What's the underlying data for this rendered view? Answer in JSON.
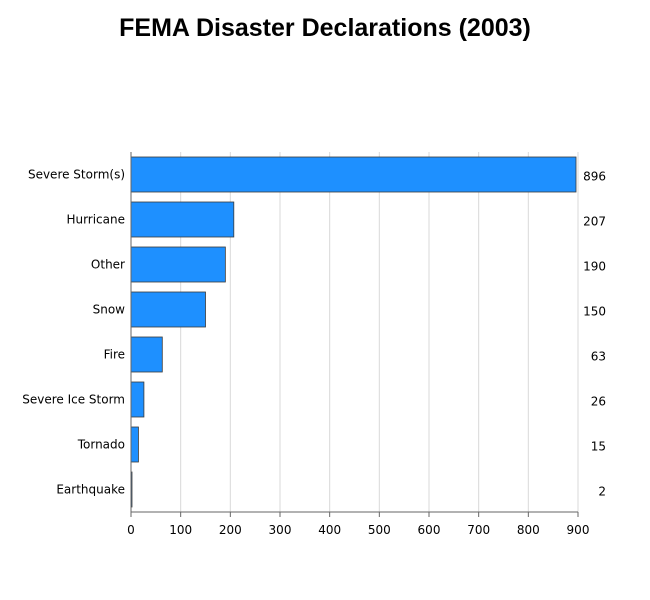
{
  "chart_data": {
    "type": "bar",
    "orientation": "horizontal",
    "title": "FEMA Disaster Declarations (2003)",
    "categories": [
      "Severe Storm(s)",
      "Hurricane",
      "Other",
      "Snow",
      "Fire",
      "Severe Ice Storm",
      "Tornado",
      "Earthquake"
    ],
    "values": [
      896,
      207,
      190,
      150,
      63,
      26,
      15,
      2
    ],
    "value_labels": [
      "896",
      "207",
      "190",
      "150",
      "63",
      "26",
      "15",
      "2"
    ],
    "xlim": [
      0,
      900
    ],
    "xticks": [
      "0",
      "100",
      "200",
      "300",
      "400",
      "500",
      "600",
      "700",
      "800",
      "900"
    ],
    "grid": "vertical",
    "bar_color": "#1e90ff",
    "xlabel": "",
    "ylabel": ""
  }
}
